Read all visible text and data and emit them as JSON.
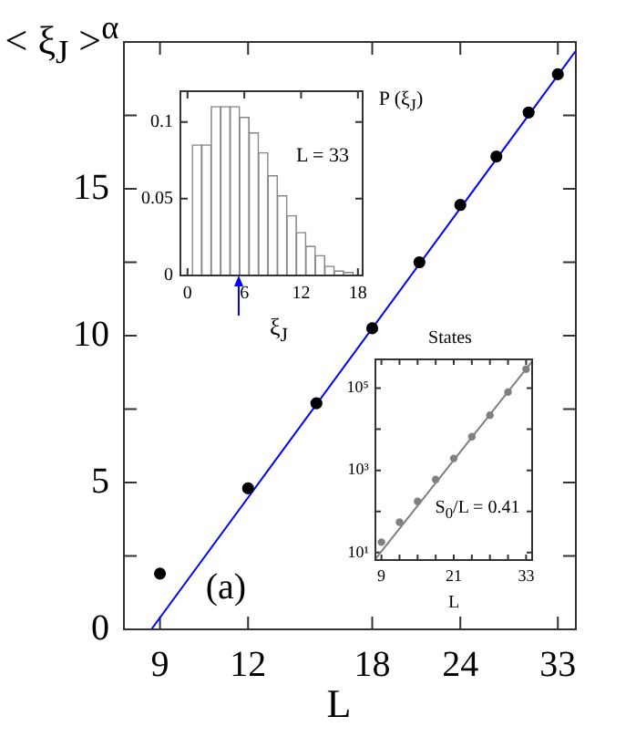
{
  "chart_data": [
    {
      "type": "scatter",
      "xlabel": "L",
      "ylabel": "< ξ$_{J}$ >$^{α}$",
      "annotations": [
        "(a)"
      ],
      "log": "x",
      "marker": "circle",
      "xlim": [
        8,
        35
      ],
      "xticks": [
        9,
        12,
        18,
        24,
        33
      ],
      "ylim": [
        0,
        20
      ],
      "yticks": [
        0,
        {
          "value": 2.5,
          "label": null
        },
        5,
        {
          "value": 7.5,
          "label": null
        },
        10,
        {
          "value": 12.5,
          "label": null
        },
        15,
        {
          "value": 17.5,
          "label": null
        }
      ],
      "series": [
        {
          "color": "#000000",
          "x": [
            9,
            12,
            15,
            18,
            21,
            24,
            27,
            30,
            33
          ],
          "values": [
            1.9,
            4.8,
            7.7,
            10.25,
            12.5,
            14.45,
            16.1,
            17.6,
            18.9
          ]
        },
        {
          "type": "line",
          "marker": "none",
          "color": "#0000ff",
          "x": [
            8.75,
            35
          ],
          "values": [
            0,
            19.7
          ]
        }
      ]
    },
    {
      "type": "histogram",
      "xlabel": "ξ$_{J}$",
      "ylabel": "P (ξ$_{J}$)",
      "annotations": [
        "L = 33"
      ],
      "color": "#888888",
      "xlim": [
        -0.75,
        18.5
      ],
      "xticks": [
        0,
        6,
        12,
        18
      ],
      "ylim": [
        0,
        0.12
      ],
      "yticks": [
        0,
        0.05,
        0.1
      ],
      "bins": [
        0.5,
        1.5,
        2.5,
        3.5,
        4.5,
        5.5,
        6.5,
        7.5,
        8.5,
        9.5,
        10.5,
        11.5,
        12.5,
        13.5,
        14.5,
        15.5,
        16.5,
        17.5
      ],
      "values": [
        0.085,
        0.085,
        0.11,
        0.11,
        0.11,
        0.103,
        0.093,
        0.08,
        0.065,
        0.052,
        0.039,
        0.028,
        0.019,
        0.013,
        0.006,
        0.003,
        0.002
      ]
    },
    {
      "type": "scatter",
      "title": "States",
      "xlabel": "L",
      "annotations": [
        "S$_{0}$/L = 0.41"
      ],
      "log": "y",
      "marker": "circle",
      "xlim": [
        8,
        34
      ],
      "xticks": [
        9,
        {
          "value": 12,
          "label": null
        },
        {
          "value": 15,
          "label": null
        },
        {
          "value": 18,
          "label": null
        },
        21,
        {
          "value": 24,
          "label": null
        },
        {
          "value": 27,
          "label": null
        },
        {
          "value": 30,
          "label": null
        },
        33
      ],
      "ylim": [
        6.6,
        500000
      ],
      "yticks": [
        {
          "value": 10,
          "label": "10¹"
        },
        {
          "value": 100,
          "label": null
        },
        {
          "value": 1000,
          "label": "10³"
        },
        {
          "value": 10000,
          "label": null
        },
        {
          "value": 100000,
          "label": "10⁵"
        }
      ],
      "series": [
        {
          "color": "#808080",
          "x": [
            9,
            12,
            15,
            18,
            21,
            24,
            27,
            30,
            33
          ],
          "values": [
            18,
            55,
            175,
            600,
            1950,
            6600,
            22000,
            80000,
            290000
          ]
        },
        {
          "type": "line",
          "marker": "none",
          "color": "#808080",
          "x": [
            8,
            34
          ],
          "values": [
            7,
            450000
          ]
        }
      ]
    }
  ]
}
